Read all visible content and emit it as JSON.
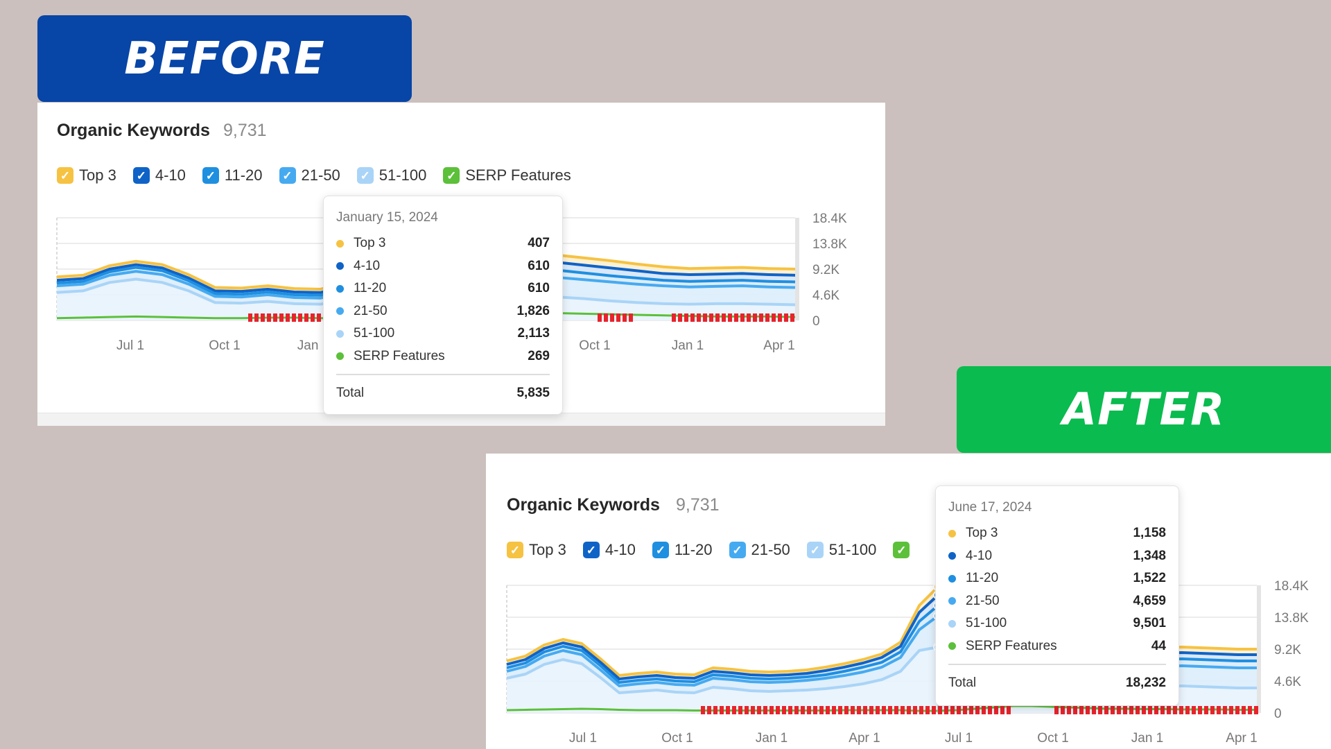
{
  "banners": {
    "before": "BEFORE",
    "after": "AFTER"
  },
  "colors": {
    "top3": "#f6c242",
    "p4_10": "#0f63c7",
    "p11_20": "#1f8fe0",
    "p21_50": "#46aaf0",
    "p51_100": "#a9d4f7",
    "serp": "#5cc03a",
    "banner_before": "#0745a7",
    "banner_after": "#0abb4f",
    "markers": "#e8232c"
  },
  "legend": [
    {
      "label": "Top 3",
      "color": "#f6c242"
    },
    {
      "label": "4-10",
      "color": "#0f63c7"
    },
    {
      "label": "11-20",
      "color": "#1f8fe0"
    },
    {
      "label": "21-50",
      "color": "#46aaf0"
    },
    {
      "label": "51-100",
      "color": "#a9d4f7"
    },
    {
      "label": "SERP Features",
      "color": "#5cc03a"
    }
  ],
  "check_icon": "check-icon",
  "before": {
    "title": "Organic Keywords",
    "count": "9,731",
    "tooltip": {
      "date": "January 15, 2024",
      "rows": [
        {
          "label": "Top 3",
          "value": "407",
          "color": "#f6c242"
        },
        {
          "label": "4-10",
          "value": "610",
          "color": "#0f63c7"
        },
        {
          "label": "11-20",
          "value": "610",
          "color": "#1f8fe0"
        },
        {
          "label": "21-50",
          "value": "1,826",
          "color": "#46aaf0"
        },
        {
          "label": "51-100",
          "value": "2,113",
          "color": "#a9d4f7"
        },
        {
          "label": "SERP Features",
          "value": "269",
          "color": "#5cc03a"
        }
      ],
      "total_label": "Total",
      "total_value": "5,835"
    }
  },
  "after": {
    "title": "Organic Keywords",
    "count": "9,731",
    "tooltip": {
      "date": "June 17, 2024",
      "rows": [
        {
          "label": "Top 3",
          "value": "1,158",
          "color": "#f6c242"
        },
        {
          "label": "4-10",
          "value": "1,348",
          "color": "#0f63c7"
        },
        {
          "label": "11-20",
          "value": "1,522",
          "color": "#1f8fe0"
        },
        {
          "label": "21-50",
          "value": "4,659",
          "color": "#46aaf0"
        },
        {
          "label": "51-100",
          "value": "9,501",
          "color": "#a9d4f7"
        },
        {
          "label": "SERP Features",
          "value": "44",
          "color": "#5cc03a"
        }
      ],
      "total_label": "Total",
      "total_value": "18,232"
    }
  },
  "chart_data": [
    {
      "type": "area",
      "y_ticks": [
        "18.4K",
        "13.8K",
        "9.2K",
        "4.6K",
        "0"
      ],
      "ylim": [
        0,
        18400
      ],
      "x_ticks": [
        "Jul 1",
        "Oct 1",
        "Jan 1",
        "Oct 1",
        "Jan 1",
        "Apr 1"
      ],
      "x": [
        0,
        10,
        20,
        30,
        40,
        50,
        60,
        70,
        80,
        90,
        100,
        110,
        120,
        130,
        140,
        150,
        160,
        170,
        180,
        190,
        200,
        210,
        220,
        230,
        240,
        250,
        260,
        270,
        280
      ],
      "series": [
        {
          "name": "Top 3",
          "values": [
            7800,
            8100,
            9800,
            10600,
            10000,
            8200,
            5900,
            5800,
            6200,
            5700,
            5600,
            6800,
            6600,
            6200,
            6000,
            6000,
            6100,
            11500,
            12000,
            11700,
            11200,
            10700,
            10100,
            9600,
            9300,
            9400,
            9500,
            9300,
            9200
          ]
        },
        {
          "name": "4-10",
          "values": [
            7200,
            7500,
            9200,
            10000,
            9400,
            7600,
            5300,
            5200,
            5600,
            5100,
            5000,
            6200,
            6000,
            5600,
            5400,
            5400,
            5500,
            10300,
            10700,
            10400,
            9900,
            9400,
            8900,
            8400,
            8200,
            8300,
            8400,
            8200,
            8100
          ]
        },
        {
          "name": "11-20",
          "values": [
            6700,
            7000,
            8700,
            9500,
            8900,
            7100,
            4800,
            4700,
            5100,
            4600,
            4500,
            5700,
            5500,
            5100,
            4900,
            4900,
            5000,
            9000,
            9300,
            9000,
            8500,
            8000,
            7600,
            7200,
            7000,
            7100,
            7200,
            7000,
            6900
          ]
        },
        {
          "name": "21-50",
          "values": [
            6200,
            6500,
            8100,
            8800,
            8200,
            6500,
            4300,
            4200,
            4600,
            4100,
            4000,
            5100,
            4900,
            4500,
            4300,
            4300,
            4400,
            7800,
            8000,
            7700,
            7300,
            6900,
            6500,
            6200,
            6000,
            6100,
            6200,
            6000,
            5900
          ]
        },
        {
          "name": "51-100",
          "values": [
            5000,
            5300,
            6800,
            7400,
            6800,
            5300,
            3200,
            3100,
            3400,
            3000,
            2900,
            3800,
            3600,
            3200,
            3000,
            3000,
            3100,
            4300,
            4400,
            4200,
            3900,
            3500,
            3200,
            3000,
            2900,
            3000,
            3000,
            2900,
            2800
          ]
        },
        {
          "name": "SERP Features",
          "values": [
            400,
            500,
            600,
            700,
            600,
            500,
            400,
            400,
            500,
            500,
            400,
            400,
            400,
            400,
            400,
            400,
            400,
            1200,
            1300,
            1300,
            1200,
            1100,
            1000,
            900,
            800,
            700,
            700,
            700,
            600
          ]
        }
      ]
    },
    {
      "type": "area",
      "y_ticks": [
        "18.4K",
        "13.8K",
        "9.2K",
        "4.6K",
        "0"
      ],
      "ylim": [
        0,
        18400
      ],
      "x_ticks": [
        "Jul 1",
        "Oct 1",
        "Jan 1",
        "Apr 1",
        "Jul 1",
        "Oct 1",
        "Jan 1",
        "Apr 1"
      ],
      "x": [
        0,
        10,
        20,
        30,
        40,
        50,
        60,
        70,
        80,
        90,
        100,
        110,
        120,
        130,
        140,
        150,
        160,
        170,
        180,
        190,
        200,
        210,
        220,
        230,
        240,
        250,
        260,
        270,
        280,
        290,
        300,
        310,
        320,
        330,
        340,
        350,
        360,
        370,
        380,
        390,
        400
      ],
      "series": [
        {
          "name": "Top 3",
          "values": [
            7500,
            8200,
            9800,
            10600,
            10000,
            7800,
            5400,
            5700,
            5900,
            5600,
            5500,
            6500,
            6300,
            6000,
            5900,
            6000,
            6200,
            6600,
            7100,
            7700,
            8500,
            10200,
            15500,
            18200,
            15000,
            12500,
            11200,
            10300,
            9800,
            9600,
            9600,
            9700,
            9500,
            9600,
            9500,
            9400,
            9500,
            9400,
            9300,
            9200,
            9200
          ]
        },
        {
          "name": "4-10",
          "values": [
            7000,
            7700,
            9300,
            10100,
            9500,
            7300,
            4900,
            5200,
            5400,
            5100,
            5000,
            6000,
            5800,
            5500,
            5400,
            5500,
            5700,
            6100,
            6600,
            7200,
            8000,
            9600,
            14500,
            17000,
            14000,
            11500,
            10300,
            9500,
            9000,
            8800,
            8800,
            8900,
            8700,
            8800,
            8700,
            8600,
            8700,
            8600,
            8500,
            8400,
            8400
          ]
        },
        {
          "name": "11-20",
          "values": [
            6500,
            7200,
            8800,
            9600,
            9000,
            6800,
            4400,
            4700,
            4900,
            4600,
            4500,
            5500,
            5300,
            5000,
            4900,
            5000,
            5200,
            5500,
            6000,
            6600,
            7300,
            8800,
            13200,
            15500,
            12800,
            10400,
            9300,
            8600,
            8100,
            7900,
            7900,
            8000,
            7800,
            7900,
            7800,
            7700,
            7800,
            7700,
            7600,
            7500,
            7500
          ]
        },
        {
          "name": "21-50",
          "values": [
            6000,
            6700,
            8200,
            9000,
            8400,
            6200,
            3900,
            4200,
            4400,
            4100,
            4000,
            5000,
            4800,
            4500,
            4400,
            4500,
            4700,
            5000,
            5400,
            5900,
            6600,
            8000,
            12000,
            14000,
            11500,
            9300,
            8200,
            7500,
            7100,
            6900,
            6900,
            7000,
            6800,
            6900,
            6800,
            6700,
            6800,
            6700,
            6600,
            6500,
            6500
          ]
        },
        {
          "name": "51-100",
          "values": [
            5000,
            5600,
            7000,
            7700,
            7100,
            5100,
            2900,
            3100,
            3300,
            3000,
            2900,
            3700,
            3500,
            3200,
            3100,
            3200,
            3300,
            3500,
            3800,
            4200,
            4800,
            6000,
            9000,
            9500,
            7500,
            5800,
            5000,
            4500,
            4200,
            4000,
            4000,
            4100,
            3900,
            4000,
            3900,
            3800,
            3900,
            3800,
            3700,
            3600,
            3600
          ]
        },
        {
          "name": "SERP Features",
          "values": [
            400,
            450,
            500,
            550,
            600,
            550,
            450,
            400,
            400,
            400,
            350,
            350,
            350,
            350,
            350,
            350,
            350,
            350,
            400,
            400,
            400,
            400,
            300,
            300,
            400,
            600,
            800,
            1000,
            1000,
            900,
            800,
            700,
            600,
            600,
            550,
            550,
            500,
            500,
            500,
            450,
            450
          ]
        }
      ]
    }
  ]
}
